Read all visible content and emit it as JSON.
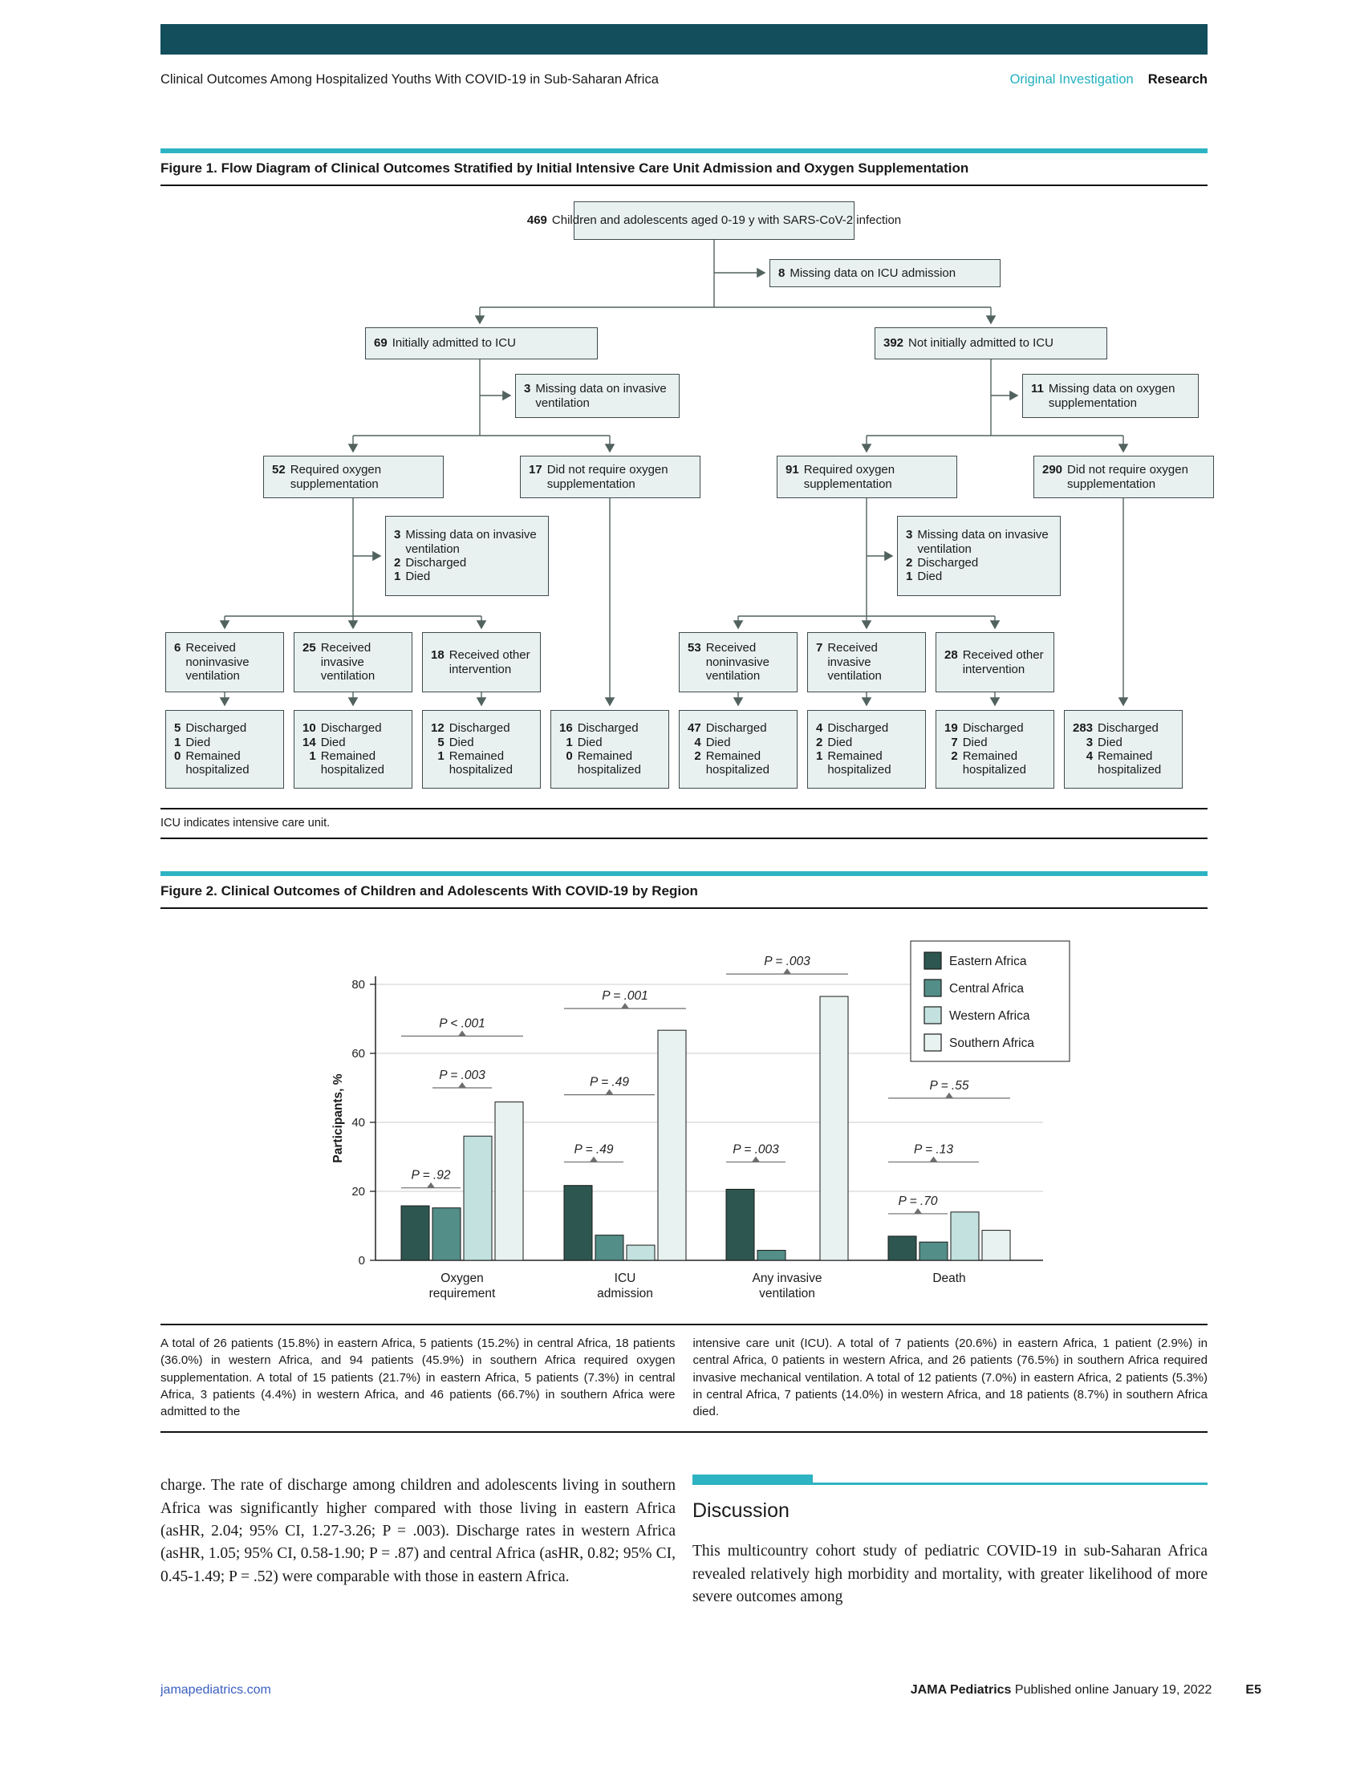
{
  "page": {
    "running_title": "Clinical Outcomes Among Hospitalized Youths With COVID-19 in Sub-Saharan Africa",
    "category_primary": "Original Investigation",
    "category_secondary": "Research",
    "footer": {
      "site": "jamapediatrics.com",
      "journal": "JAMA Pediatrics",
      "published": "Published online January 19, 2022",
      "page_number": "E5"
    }
  },
  "colors": {
    "header_bar": "#134e5c",
    "accent_teal": "#2db3c2",
    "category_teal": "#21afc0",
    "link_blue": "#3b5fc0",
    "flow_box_fill": "#e8f1f0",
    "flow_box_border": "#404b4d"
  },
  "figure1": {
    "title": "Figure 1. Flow Diagram of Clinical Outcomes Stratified by Initial Intensive Care Unit Admission and Oxygen Supplementation",
    "note": "ICU indicates intensive care unit.",
    "boxes": {
      "total": {
        "n": "469",
        "text": "Children and adolescents aged 0-19 y with SARS-CoV-2 infection"
      },
      "missing_icu": {
        "n": "8",
        "text": "Missing data on ICU admission"
      },
      "icu_yes": {
        "n": "69",
        "text": "Initially admitted to ICU"
      },
      "icu_no": {
        "n": "392",
        "text": "Not initially admitted to ICU"
      },
      "missing_vent_icu": {
        "n": "3",
        "text": "Missing data on invasive ventilation"
      },
      "missing_oxy": {
        "n": "11",
        "text": "Missing data on oxygen supplementation"
      },
      "oxy_req_icu": {
        "n": "52",
        "text": "Required oxygen supplementation"
      },
      "oxy_no_icu": {
        "n": "17",
        "text": "Did not require oxygen supplementation"
      },
      "oxy_req_ward": {
        "n": "91",
        "text": "Required oxygen supplementation"
      },
      "oxy_no_ward": {
        "n": "290",
        "text": "Did not require oxygen supplementation"
      },
      "missing_mixed_icu": {
        "items": [
          {
            "n": "3",
            "text": "Missing data on invasive ventilation"
          },
          {
            "n": "2",
            "text": "Discharged"
          },
          {
            "n": "1",
            "text": "Died"
          }
        ]
      },
      "missing_mixed_ward": {
        "items": [
          {
            "n": "3",
            "text": "Missing data on invasive ventilation"
          },
          {
            "n": "2",
            "text": "Discharged"
          },
          {
            "n": "1",
            "text": "Died"
          }
        ]
      },
      "vent_icu_noninv": {
        "n": "6",
        "text": "Received noninvasive ventilation"
      },
      "vent_icu_inv": {
        "n": "25",
        "text": "Received invasive ventilation"
      },
      "vent_icu_other": {
        "n": "18",
        "text": "Received other intervention"
      },
      "vent_ward_noninv": {
        "n": "53",
        "text": "Received noninvasive ventilation"
      },
      "vent_ward_inv": {
        "n": "7",
        "text": "Received invasive ventilation"
      },
      "vent_ward_other": {
        "n": "28",
        "text": "Received other intervention"
      },
      "out1": {
        "items": [
          {
            "n": "5",
            "text": "Discharged"
          },
          {
            "n": "1",
            "text": "Died"
          },
          {
            "n": "0",
            "text": "Remained hospitalized"
          }
        ]
      },
      "out2": {
        "items": [
          {
            "n": "10",
            "text": "Discharged"
          },
          {
            "n": "14",
            "text": "Died"
          },
          {
            "n": "1",
            "text": "Remained hospitalized"
          }
        ]
      },
      "out3": {
        "items": [
          {
            "n": "12",
            "text": "Discharged"
          },
          {
            "n": "5",
            "text": "Died"
          },
          {
            "n": "1",
            "text": "Remained hospitalized"
          }
        ]
      },
      "out4": {
        "items": [
          {
            "n": "16",
            "text": "Discharged"
          },
          {
            "n": "1",
            "text": "Died"
          },
          {
            "n": "0",
            "text": "Remained hospitalized"
          }
        ]
      },
      "out5": {
        "items": [
          {
            "n": "47",
            "text": "Discharged"
          },
          {
            "n": "4",
            "text": "Died"
          },
          {
            "n": "2",
            "text": "Remained hospitalized"
          }
        ]
      },
      "out6": {
        "items": [
          {
            "n": "4",
            "text": "Discharged"
          },
          {
            "n": "2",
            "text": "Died"
          },
          {
            "n": "1",
            "text": "Remained hospitalized"
          }
        ]
      },
      "out7": {
        "items": [
          {
            "n": "19",
            "text": "Discharged"
          },
          {
            "n": "7",
            "text": "Died"
          },
          {
            "n": "2",
            "text": "Remained hospitalized"
          }
        ]
      },
      "out8": {
        "items": [
          {
            "n": "283",
            "text": "Discharged"
          },
          {
            "n": "3",
            "text": "Died"
          },
          {
            "n": "4",
            "text": "Remained hospitalized"
          }
        ]
      }
    }
  },
  "figure2": {
    "title": "Figure 2. Clinical Outcomes of Children and Adolescents With COVID-19 by Region",
    "caption_left": "A total of 26 patients (15.8%) in eastern Africa, 5 patients (15.2%) in central Africa, 18 patients (36.0%) in western Africa, and 94 patients (45.9%) in southern Africa required oxygen supplementation. A total of 15 patients (21.7%) in eastern Africa, 5 patients (7.3%) in central Africa, 3 patients (4.4%) in western Africa, and 46 patients (66.7%) in southern Africa were admitted to the",
    "caption_right": "intensive care unit (ICU). A total of 7 patients (20.6%) in eastern Africa, 1 patient (2.9%) in central Africa, 0 patients in western Africa, and 26 patients (76.5%) in southern Africa required invasive mechanical ventilation. A total of 12 patients (7.0%) in eastern Africa, 2 patients (5.3%) in central Africa, 7 patients (14.0%) in western Africa, and 18 patients (8.7%) in southern Africa died.",
    "chart_data": {
      "type": "bar",
      "categories": [
        "Oxygen requirement",
        "ICU admission",
        "Any invasive ventilation",
        "Death"
      ],
      "tick_lines": [
        [
          "Oxygen",
          "requirement"
        ],
        [
          "ICU",
          "admission"
        ],
        [
          "Any invasive",
          "ventilation"
        ],
        [
          "Death"
        ]
      ],
      "series": [
        {
          "name": "Eastern Africa",
          "color": "#2c564f",
          "values": [
            15.8,
            21.7,
            20.6,
            7.0
          ]
        },
        {
          "name": "Central Africa",
          "color": "#538e88",
          "values": [
            15.2,
            7.3,
            2.9,
            5.3
          ]
        },
        {
          "name": "Western Africa",
          "color": "#c2e1df",
          "values": [
            36.0,
            4.4,
            0,
            14.0
          ]
        },
        {
          "name": "Southern Africa",
          "color": "#e8f3f1",
          "values": [
            45.9,
            66.7,
            76.5,
            8.7
          ]
        }
      ],
      "ylabel": "Participants, %",
      "ylim": [
        0,
        80
      ],
      "yticks": [
        0,
        20,
        40,
        60,
        80
      ],
      "grid": true,
      "legend_position": "top-right",
      "annotations": [
        {
          "group": 0,
          "label": "P < .001",
          "y": 65,
          "span": [
            0,
            3
          ]
        },
        {
          "group": 0,
          "label": "P = .003",
          "y": 50,
          "span": [
            1,
            2
          ]
        },
        {
          "group": 0,
          "label": "P = .92",
          "y": 21,
          "span": [
            0,
            1
          ]
        },
        {
          "group": 1,
          "label": "P = .001",
          "y": 73,
          "span": [
            0,
            3
          ]
        },
        {
          "group": 1,
          "label": "P = .49",
          "y": 48,
          "span": [
            0,
            2
          ]
        },
        {
          "group": 1,
          "label": "P = .49",
          "y": 28.5,
          "span": [
            0,
            1
          ]
        },
        {
          "group": 2,
          "label": "P = .003",
          "y": 83,
          "span": [
            0,
            3
          ]
        },
        {
          "group": 2,
          "label": "P = .003",
          "y": 28.5,
          "span": [
            0,
            1
          ]
        },
        {
          "group": 3,
          "label": "P = .55",
          "y": 47,
          "span": [
            0,
            3
          ]
        },
        {
          "group": 3,
          "label": "P = .13",
          "y": 28.5,
          "span": [
            0,
            2
          ]
        },
        {
          "group": 3,
          "label": "P = .70",
          "y": 13.5,
          "span": [
            0,
            1
          ]
        }
      ]
    }
  },
  "body": {
    "left_paragraph": "charge. The rate of discharge among children and adolescents living in southern Africa was significantly higher compared with those living in eastern Africa (asHR, 2.04; 95% CI, 1.27-3.26; P = .003). Discharge rates in western Africa (asHR, 1.05; 95% CI, 0.58-1.90; P = .87) and central Africa (asHR, 0.82; 95% CI, 0.45-1.49; P = .52) were comparable with those in eastern Africa.",
    "discussion_heading": "Discussion",
    "discussion_paragraph": "This multicountry cohort study of pediatric COVID-19 in sub-Saharan Africa revealed relatively high morbidity and mortality, with greater likelihood of more severe outcomes among"
  }
}
